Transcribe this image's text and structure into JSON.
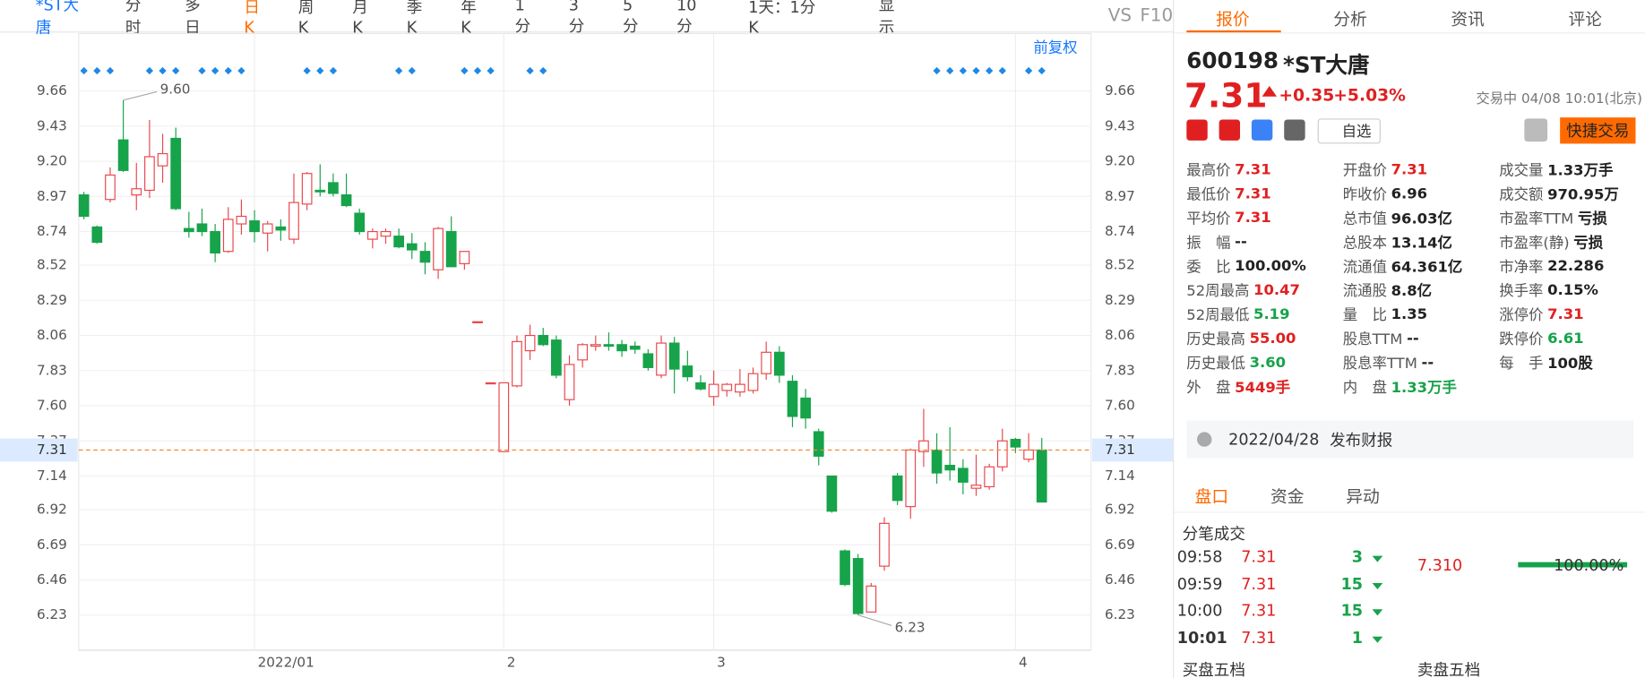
{
  "toolbar": {
    "stock_tab": "*ST大唐",
    "periods": [
      "分时",
      "多日",
      "日K",
      "周K",
      "月K",
      "季K",
      "年K",
      "1分",
      "3分",
      "5分",
      "10分"
    ],
    "interval": "1天：1分K",
    "display": "显示",
    "vs": "VS",
    "f10": "F10",
    "adjust": "前复权"
  },
  "chart_data": {
    "type": "candlestick",
    "categories": [
      null,
      null,
      null,
      null,
      null,
      null,
      null,
      null,
      null,
      null,
      null,
      null,
      null,
      "2022/01",
      null,
      null,
      null,
      null,
      null,
      null,
      null,
      null,
      null,
      null,
      null,
      null,
      null,
      null,
      null,
      null,
      null,
      null,
      "2",
      null,
      null,
      null,
      null,
      null,
      null,
      null,
      null,
      null,
      null,
      null,
      null,
      null,
      null,
      null,
      "3",
      null,
      null,
      null,
      null,
      null,
      null,
      null,
      null,
      null,
      null,
      null,
      null,
      null,
      null,
      null,
      null,
      null,
      null,
      null,
      null,
      null,
      null,
      "4",
      null,
      null
    ],
    "open": [
      8.98,
      8.77,
      8.95,
      9.34,
      8.98,
      9.01,
      9.17,
      9.35,
      8.76,
      8.79,
      8.74,
      8.61,
      8.79,
      8.81,
      8.73,
      8.77,
      8.69,
      8.92,
      9.01,
      9.06,
      8.98,
      8.86,
      8.69,
      8.71,
      8.71,
      8.66,
      8.61,
      8.49,
      8.74,
      8.53,
      8.15,
      7.75,
      7.3,
      7.73,
      7.96,
      8.06,
      8.03,
      7.64,
      7.9,
      7.99,
      8.0,
      8.0,
      7.99,
      7.94,
      7.8,
      8.01,
      7.86,
      7.75,
      7.66,
      7.7,
      7.69,
      7.7,
      7.81,
      7.95,
      7.76,
      7.65,
      7.43,
      7.14,
      6.65,
      6.6,
      6.25,
      6.55,
      7.14,
      6.94,
      7.3,
      7.31,
      7.21,
      7.19,
      7.06,
      7.07,
      7.2,
      7.38,
      7.25,
      7.31
    ],
    "high": [
      9.0,
      8.78,
      9.16,
      9.6,
      9.19,
      9.47,
      9.38,
      9.42,
      8.87,
      8.89,
      8.79,
      8.9,
      8.95,
      8.88,
      8.81,
      8.82,
      9.12,
      9.13,
      9.18,
      9.12,
      9.12,
      8.89,
      8.76,
      8.76,
      8.76,
      8.73,
      8.67,
      8.77,
      8.84,
      8.61,
      8.15,
      7.75,
      7.75,
      8.06,
      8.13,
      8.11,
      8.06,
      7.93,
      8.01,
      8.06,
      8.08,
      8.03,
      8.02,
      7.97,
      8.06,
      8.05,
      7.96,
      7.8,
      7.83,
      7.75,
      7.84,
      7.85,
      8.02,
      7.99,
      7.8,
      7.71,
      7.45,
      7.14,
      6.66,
      6.63,
      6.44,
      6.87,
      7.16,
      7.32,
      7.58,
      7.42,
      7.46,
      7.25,
      7.28,
      7.22,
      7.45,
      7.39,
      7.42,
      7.39
    ],
    "low": [
      8.82,
      8.66,
      8.93,
      9.13,
      8.88,
      8.96,
      9.06,
      8.88,
      8.7,
      8.71,
      8.54,
      8.6,
      8.72,
      8.67,
      8.61,
      8.68,
      8.66,
      8.88,
      8.97,
      8.97,
      8.9,
      8.72,
      8.63,
      8.66,
      8.63,
      8.56,
      8.46,
      8.43,
      8.51,
      8.49,
      8.15,
      7.75,
      7.3,
      7.72,
      7.9,
      7.99,
      7.78,
      7.6,
      7.85,
      7.96,
      7.96,
      7.92,
      7.94,
      7.83,
      7.78,
      7.68,
      7.76,
      7.7,
      7.6,
      7.66,
      7.66,
      7.68,
      7.77,
      7.75,
      7.46,
      7.45,
      7.21,
      6.9,
      6.42,
      6.23,
      6.25,
      6.52,
      6.95,
      6.86,
      7.2,
      7.09,
      7.11,
      7.02,
      7.01,
      7.05,
      7.17,
      7.29,
      7.23,
      6.97
    ],
    "close": [
      8.84,
      8.67,
      9.11,
      9.14,
      9.02,
      9.23,
      9.25,
      8.89,
      8.74,
      8.74,
      8.6,
      8.82,
      8.84,
      8.74,
      8.79,
      8.75,
      8.93,
      9.12,
      9.0,
      8.99,
      8.91,
      8.74,
      8.74,
      8.74,
      8.64,
      8.62,
      8.54,
      8.76,
      8.51,
      8.61,
      8.15,
      7.75,
      7.75,
      8.02,
      8.06,
      8.0,
      7.8,
      7.87,
      8.0,
      8.0,
      7.99,
      7.96,
      7.97,
      7.85,
      8.01,
      7.84,
      7.79,
      7.71,
      7.74,
      7.74,
      7.74,
      7.81,
      7.95,
      7.8,
      7.53,
      7.52,
      7.27,
      6.91,
      6.43,
      6.24,
      6.42,
      6.83,
      6.98,
      7.31,
      7.37,
      7.16,
      7.18,
      7.1,
      7.08,
      7.2,
      7.37,
      7.33,
      7.31,
      6.97
    ],
    "up_color": "#e8474c",
    "down_color": "#16a34a",
    "ylim": [
      6.0,
      9.83
    ],
    "yticks": [
      9.66,
      9.43,
      {
        "value": 9.2,
        "label": "9.20"
      },
      8.97,
      8.74,
      8.52,
      8.29,
      8.06,
      7.83,
      {
        "value": 7.6,
        "label": "7.60"
      },
      7.37,
      7.14,
      6.92,
      6.69,
      6.46,
      6.23
    ],
    "high_label": {
      "value": 9.6,
      "label": "9.60"
    },
    "low_label": 6.23,
    "last_price": 7.31,
    "grid": true
  },
  "quote": {
    "tabs": [
      "报价",
      "分析",
      "资讯",
      "评论"
    ],
    "code": "600198",
    "name": "*ST大唐",
    "price": "7.31",
    "change": "+0.35",
    "pct": "+5.03%",
    "status": "交易中 04/08 10:01(北京)",
    "watch": "自选",
    "trade": "快捷交易",
    "stats": [
      [
        {
          "label": "最高价",
          "value": "7.31",
          "color": "#e02020"
        },
        {
          "label": "最低价",
          "value": "7.31",
          "color": "#e02020"
        },
        {
          "label": "平均价",
          "value": "7.31",
          "color": "#e02020"
        },
        {
          "label": "振　幅",
          "value": "--"
        },
        {
          "label": "委　比",
          "value": "100.00%"
        },
        {
          "label": "52周最高",
          "value": "10.47",
          "color": "#e02020"
        },
        {
          "label": "52周最低",
          "value": "5.19",
          "color": "#16a34a"
        },
        {
          "label": "历史最高",
          "value": "55.00",
          "color": "#e02020"
        },
        {
          "label": "历史最低",
          "value": "3.60",
          "color": "#16a34a"
        },
        {
          "label": "外　盘",
          "value": "5449手",
          "color": "#e02020"
        }
      ],
      [
        {
          "label": "开盘价",
          "value": "7.31",
          "color": "#e02020"
        },
        {
          "label": "昨收价",
          "value": "6.96"
        },
        {
          "label": "总市值",
          "value": "96.03亿"
        },
        {
          "label": "总股本",
          "value": "13.14亿"
        },
        {
          "label": "流通值",
          "value": "64.361亿"
        },
        {
          "label": "流通股",
          "value": "8.8亿"
        },
        {
          "label": "量　比",
          "value": "1.35"
        },
        {
          "label": "股息TTM",
          "value": "--"
        },
        {
          "label": "股息率TTM",
          "value": "--"
        },
        {
          "label": "内　盘",
          "value": "1.33万手",
          "color": "#16a34a"
        }
      ],
      [
        {
          "label": "成交量",
          "value": "1.33万手"
        },
        {
          "label": "成交额",
          "value": "970.95万"
        },
        {
          "label": "市盈率TTM",
          "value": "亏损"
        },
        {
          "label": "市盈率(静)",
          "value": "亏损"
        },
        {
          "label": "市净率",
          "value": "22.286"
        },
        {
          "label": "换手率",
          "value": "0.15%"
        },
        {
          "label": "涨停价",
          "value": "7.31",
          "color": "#e02020"
        },
        {
          "label": "跌停价",
          "value": "6.61",
          "color": "#16a34a"
        },
        {
          "label": "每　手",
          "value": "100股"
        }
      ]
    ],
    "news": {
      "date": "2022/04/28",
      "text": "发布财报"
    },
    "tabs2": [
      "盘口",
      "资金",
      "异动"
    ],
    "ticks_title": "分笔成交",
    "trades": [
      [
        "09:58",
        "7.31",
        "3"
      ],
      [
        "09:59",
        "7.31",
        "15"
      ],
      [
        "10:00",
        "7.31",
        "15"
      ],
      [
        "10:01",
        "7.31",
        "1"
      ]
    ],
    "side_price": "7.310",
    "side_pct": "100.00%",
    "bid": "买盘五档",
    "ask": "卖盘五档"
  }
}
